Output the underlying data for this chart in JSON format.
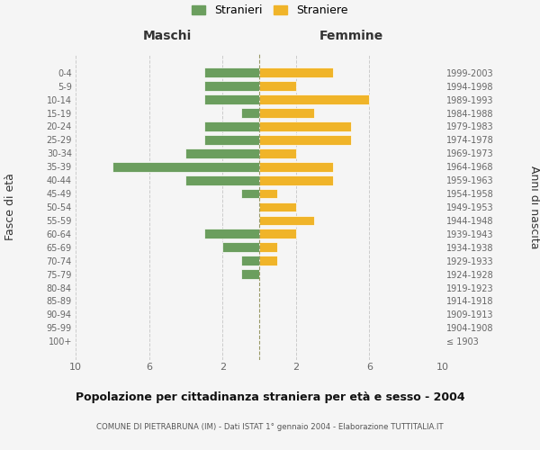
{
  "age_groups": [
    "100+",
    "95-99",
    "90-94",
    "85-89",
    "80-84",
    "75-79",
    "70-74",
    "65-69",
    "60-64",
    "55-59",
    "50-54",
    "45-49",
    "40-44",
    "35-39",
    "30-34",
    "25-29",
    "20-24",
    "15-19",
    "10-14",
    "5-9",
    "0-4"
  ],
  "birth_years": [
    "≤ 1903",
    "1904-1908",
    "1909-1913",
    "1914-1918",
    "1919-1923",
    "1924-1928",
    "1929-1933",
    "1934-1938",
    "1939-1943",
    "1944-1948",
    "1949-1953",
    "1954-1958",
    "1959-1963",
    "1964-1968",
    "1969-1973",
    "1974-1978",
    "1979-1983",
    "1984-1988",
    "1989-1993",
    "1994-1998",
    "1999-2003"
  ],
  "maschi": [
    0,
    0,
    0,
    0,
    0,
    1,
    1,
    2,
    3,
    0,
    0,
    1,
    4,
    8,
    4,
    3,
    3,
    1,
    3,
    3,
    3
  ],
  "femmine": [
    0,
    0,
    0,
    0,
    0,
    0,
    1,
    1,
    2,
    3,
    2,
    1,
    4,
    4,
    2,
    5,
    5,
    3,
    6,
    2,
    4
  ],
  "maschi_color": "#6b9e5e",
  "femmine_color": "#f0b429",
  "background_color": "#f5f5f5",
  "grid_color": "#cccccc",
  "title": "Popolazione per cittadinanza straniera per età e sesso - 2004",
  "subtitle": "COMUNE DI PIETRABRUNA (IM) - Dati ISTAT 1° gennaio 2004 - Elaborazione TUTTITALIA.IT",
  "xlabel_left": "Maschi",
  "xlabel_right": "Femmine",
  "ylabel_left": "Fasce di età",
  "ylabel_right": "Anni di nascita",
  "legend_maschi": "Stranieri",
  "legend_femmine": "Straniere",
  "xlim": 10,
  "xticks": [
    -10,
    -6,
    -2,
    2,
    6,
    10
  ],
  "xtick_labels": [
    "10",
    "6",
    "2",
    "2",
    "6",
    "10"
  ]
}
